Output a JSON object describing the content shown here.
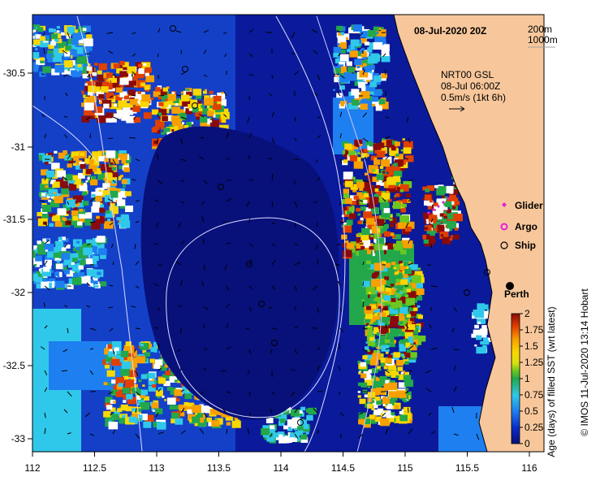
{
  "map": {
    "date_title": "08-Jul-2020 20Z",
    "contours_legend": [
      "200m",
      "1000m"
    ],
    "current_source": "NRT00 GSL",
    "current_time": "08-Jul 06:00Z",
    "current_scale": "0.5m/s (1kt 6h)",
    "x_ticks": [
      "112",
      "112.5",
      "113",
      "113.5",
      "114",
      "114.5",
      "115",
      "115.5",
      "116"
    ],
    "y_ticks": [
      "-30.5",
      "-31",
      "-31.5",
      "-32",
      "-32.5",
      "-33"
    ],
    "legend_items": [
      {
        "label": "Glider",
        "symbol": "magenta-diamond-icon",
        "color": "#e020e0"
      },
      {
        "label": "Argo",
        "symbol": "magenta-circle-icon",
        "color": "#e020e0"
      },
      {
        "label": "Ship",
        "symbol": "black-circle-icon",
        "color": "#000000"
      }
    ],
    "city_label": "Perth",
    "credit": "© IMOS 11-Jul-2020 13:14 Hobart",
    "land_color": "#f7c79b",
    "ocean_deep_color": "#08107a"
  },
  "colorbar": {
    "label": "Age (days) of filled SST (wrt latest)",
    "ticks": [
      "2",
      "1.75",
      "1.5",
      "1.25",
      "1",
      "0.75",
      "0.5",
      "0.25",
      "0"
    ],
    "range": [
      0,
      2
    ]
  }
}
